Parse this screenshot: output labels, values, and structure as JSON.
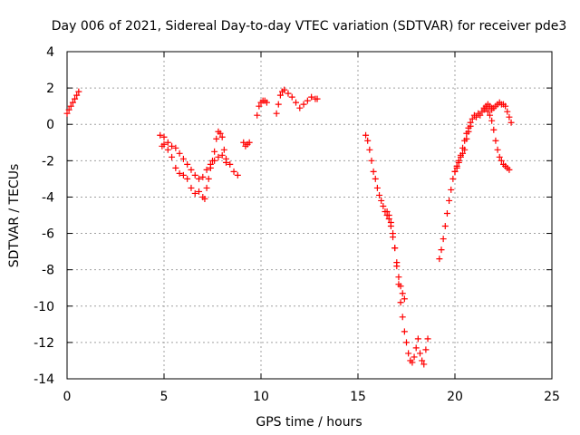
{
  "chart_data": {
    "type": "scatter",
    "title": "Day 006 of 2021, Sidereal Day-to-day VTEC variation (SDTVAR) for receiver pde3",
    "xlabel": "GPS time / hours",
    "ylabel": "SDTVAR / TECUs",
    "xlim": [
      0,
      25
    ],
    "ylim": [
      -14,
      4
    ],
    "xticks": [
      0,
      5,
      10,
      15,
      20,
      25
    ],
    "yticks": [
      -14,
      -12,
      -10,
      -8,
      -6,
      -4,
      -2,
      0,
      2,
      4
    ],
    "grid": true,
    "marker": "+",
    "marker_color": "#ff0000",
    "series": [
      {
        "name": "segment-1",
        "points": [
          [
            0.0,
            0.6
          ],
          [
            0.1,
            0.8
          ],
          [
            0.2,
            1.0
          ],
          [
            0.3,
            1.2
          ],
          [
            0.4,
            1.4
          ],
          [
            0.5,
            1.6
          ],
          [
            0.6,
            1.8
          ]
        ]
      },
      {
        "name": "segment-2a",
        "points": [
          [
            4.8,
            -0.6
          ],
          [
            5.0,
            -0.7
          ],
          [
            5.2,
            -1.0
          ],
          [
            5.4,
            -1.2
          ],
          [
            5.6,
            -1.3
          ],
          [
            5.8,
            -1.6
          ],
          [
            6.0,
            -1.9
          ],
          [
            6.2,
            -2.2
          ],
          [
            6.4,
            -2.5
          ],
          [
            6.6,
            -2.8
          ],
          [
            6.8,
            -3.0
          ],
          [
            7.0,
            -2.9
          ],
          [
            7.2,
            -2.5
          ],
          [
            7.4,
            -2.2
          ],
          [
            7.6,
            -2.0
          ],
          [
            7.8,
            -1.8
          ],
          [
            8.0,
            -1.7
          ],
          [
            8.2,
            -1.9
          ],
          [
            8.4,
            -2.2
          ],
          [
            8.6,
            -2.6
          ],
          [
            8.8,
            -2.8
          ]
        ]
      },
      {
        "name": "segment-2b",
        "points": [
          [
            4.9,
            -1.2
          ],
          [
            5.0,
            -1.1
          ],
          [
            5.2,
            -1.4
          ],
          [
            5.4,
            -1.8
          ],
          [
            5.6,
            -2.4
          ],
          [
            5.8,
            -2.7
          ],
          [
            6.0,
            -2.8
          ],
          [
            6.2,
            -3.0
          ],
          [
            6.4,
            -3.5
          ],
          [
            6.6,
            -3.8
          ],
          [
            6.8,
            -3.7
          ],
          [
            7.0,
            -4.0
          ],
          [
            7.1,
            -4.1
          ],
          [
            7.2,
            -3.5
          ],
          [
            7.3,
            -3.0
          ],
          [
            7.4,
            -2.4
          ],
          [
            7.5,
            -2.0
          ],
          [
            7.6,
            -1.5
          ],
          [
            7.7,
            -0.8
          ],
          [
            7.8,
            -0.4
          ],
          [
            7.9,
            -0.5
          ],
          [
            8.0,
            -0.7
          ],
          [
            8.1,
            -1.4
          ],
          [
            8.2,
            -2.1
          ]
        ]
      },
      {
        "name": "segment-3",
        "points": [
          [
            9.1,
            -1.0
          ],
          [
            9.2,
            -1.2
          ],
          [
            9.3,
            -1.1
          ],
          [
            9.4,
            -1.0
          ]
        ]
      },
      {
        "name": "segment-4",
        "points": [
          [
            9.8,
            0.5
          ],
          [
            9.9,
            1.0
          ],
          [
            10.0,
            1.2
          ],
          [
            10.1,
            1.3
          ],
          [
            10.2,
            1.3
          ],
          [
            10.3,
            1.2
          ]
        ]
      },
      {
        "name": "segment-5",
        "points": [
          [
            10.8,
            0.6
          ],
          [
            10.9,
            1.1
          ],
          [
            11.0,
            1.6
          ],
          [
            11.1,
            1.8
          ],
          [
            11.2,
            1.9
          ],
          [
            11.4,
            1.7
          ],
          [
            11.6,
            1.5
          ],
          [
            11.8,
            1.2
          ],
          [
            12.0,
            0.9
          ],
          [
            12.2,
            1.1
          ],
          [
            12.4,
            1.3
          ],
          [
            12.6,
            1.5
          ],
          [
            12.8,
            1.4
          ],
          [
            12.9,
            1.4
          ]
        ]
      },
      {
        "name": "segment-6",
        "points": [
          [
            15.4,
            -0.6
          ],
          [
            15.5,
            -0.9
          ],
          [
            15.6,
            -1.4
          ],
          [
            15.7,
            -2.0
          ],
          [
            15.8,
            -2.6
          ],
          [
            15.9,
            -3.0
          ],
          [
            16.0,
            -3.5
          ],
          [
            16.1,
            -3.9
          ],
          [
            16.2,
            -4.2
          ],
          [
            16.3,
            -4.5
          ],
          [
            16.4,
            -4.8
          ],
          [
            16.5,
            -5.0
          ],
          [
            16.6,
            -5.2
          ],
          [
            16.7,
            -5.6
          ],
          [
            16.8,
            -6.2
          ],
          [
            16.9,
            -6.8
          ],
          [
            17.0,
            -7.6
          ],
          [
            17.1,
            -8.4
          ],
          [
            17.2,
            -8.9
          ],
          [
            17.3,
            -9.3
          ],
          [
            17.4,
            -9.6
          ]
        ]
      },
      {
        "name": "segment-7",
        "points": [
          [
            16.5,
            -4.8
          ],
          [
            16.6,
            -5.0
          ],
          [
            16.7,
            -5.4
          ],
          [
            16.8,
            -6.0
          ],
          [
            16.9,
            -6.8
          ],
          [
            17.0,
            -7.8
          ],
          [
            17.1,
            -8.8
          ],
          [
            17.2,
            -9.8
          ],
          [
            17.3,
            -10.6
          ],
          [
            17.4,
            -11.4
          ],
          [
            17.5,
            -12.0
          ],
          [
            17.6,
            -12.6
          ],
          [
            17.7,
            -13.0
          ],
          [
            17.8,
            -13.1
          ],
          [
            17.9,
            -12.8
          ],
          [
            18.0,
            -12.3
          ],
          [
            18.1,
            -11.8
          ],
          [
            18.2,
            -12.6
          ],
          [
            18.3,
            -13.0
          ],
          [
            18.4,
            -13.2
          ],
          [
            18.5,
            -12.4
          ],
          [
            18.6,
            -11.8
          ]
        ]
      },
      {
        "name": "segment-8",
        "points": [
          [
            19.2,
            -7.4
          ],
          [
            19.3,
            -6.9
          ],
          [
            19.4,
            -6.3
          ],
          [
            19.5,
            -5.6
          ],
          [
            19.6,
            -4.9
          ],
          [
            19.7,
            -4.2
          ],
          [
            19.8,
            -3.6
          ],
          [
            19.9,
            -3.0
          ],
          [
            20.0,
            -2.6
          ],
          [
            20.1,
            -2.3
          ],
          [
            20.2,
            -2.0
          ],
          [
            20.3,
            -1.7
          ],
          [
            20.4,
            -1.3
          ],
          [
            20.5,
            -0.9
          ],
          [
            20.6,
            -0.5
          ],
          [
            20.7,
            -0.2
          ],
          [
            20.8,
            0.1
          ],
          [
            20.9,
            0.3
          ],
          [
            21.0,
            0.5
          ],
          [
            21.1,
            0.4
          ],
          [
            21.2,
            0.6
          ],
          [
            21.3,
            0.5
          ],
          [
            21.4,
            0.7
          ],
          [
            21.5,
            0.8
          ],
          [
            21.6,
            1.0
          ],
          [
            21.7,
            1.1
          ],
          [
            21.8,
            1.0
          ],
          [
            21.9,
            0.9
          ]
        ]
      },
      {
        "name": "segment-9",
        "points": [
          [
            20.0,
            -2.6
          ],
          [
            20.1,
            -2.4
          ],
          [
            20.2,
            -2.1
          ],
          [
            20.3,
            -1.8
          ],
          [
            20.4,
            -1.6
          ],
          [
            20.5,
            -1.4
          ],
          [
            20.6,
            -0.8
          ],
          [
            20.7,
            -0.4
          ],
          [
            20.8,
            -0.1
          ]
        ]
      },
      {
        "name": "segment-10",
        "points": [
          [
            21.5,
            0.9
          ],
          [
            21.6,
            0.9
          ],
          [
            21.7,
            0.7
          ],
          [
            21.8,
            0.5
          ],
          [
            21.9,
            0.2
          ],
          [
            22.0,
            -0.3
          ],
          [
            22.1,
            -0.9
          ],
          [
            22.2,
            -1.4
          ],
          [
            22.3,
            -1.8
          ],
          [
            22.4,
            -2.0
          ],
          [
            22.5,
            -2.2
          ],
          [
            22.6,
            -2.3
          ],
          [
            22.7,
            -2.4
          ],
          [
            22.8,
            -2.5
          ]
        ]
      },
      {
        "name": "segment-11",
        "points": [
          [
            21.9,
            0.8
          ],
          [
            22.0,
            0.9
          ],
          [
            22.1,
            1.0
          ],
          [
            22.2,
            1.1
          ],
          [
            22.3,
            1.2
          ],
          [
            22.4,
            1.1
          ],
          [
            22.5,
            1.1
          ],
          [
            22.6,
            1.0
          ],
          [
            22.7,
            0.7
          ],
          [
            22.8,
            0.4
          ],
          [
            22.9,
            0.1
          ]
        ]
      }
    ]
  }
}
